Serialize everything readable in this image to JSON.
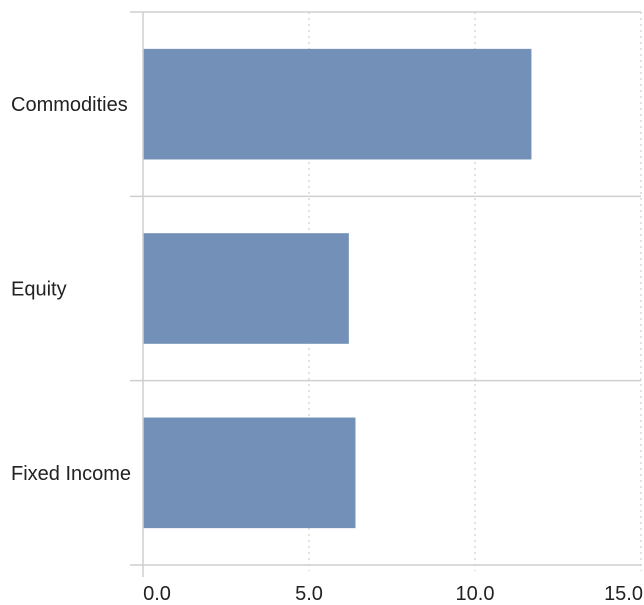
{
  "chart_data": {
    "type": "bar",
    "orientation": "horizontal",
    "categories": [
      "Commodities",
      "Equity",
      "Fixed Income"
    ],
    "values": [
      11.7,
      6.2,
      6.4
    ],
    "xlim": [
      0,
      15
    ],
    "xticks": [
      "0.0",
      "5.0",
      "10.0",
      "15.0"
    ],
    "grid": "vertical-dotted",
    "colors": {
      "bar": "#7391b8",
      "grid": "#d9d9d9",
      "axis": "#cfcfcf"
    }
  }
}
